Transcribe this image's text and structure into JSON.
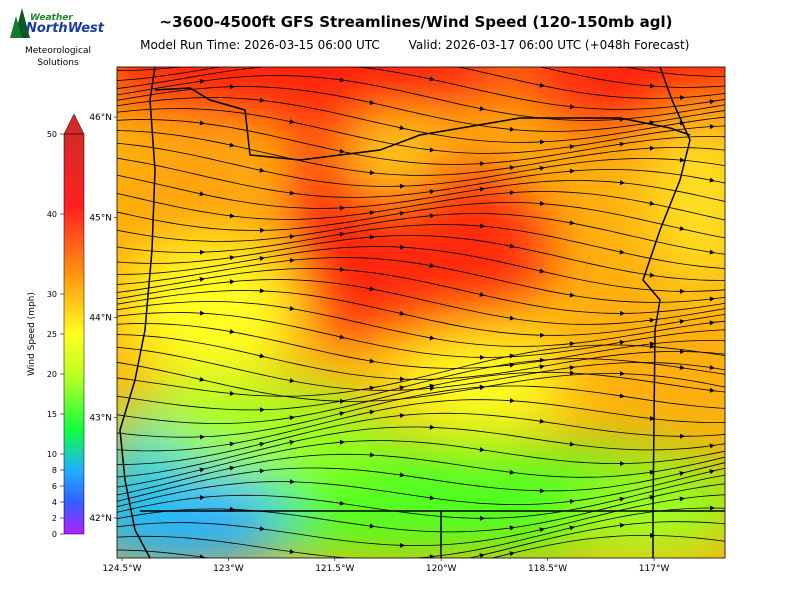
{
  "header": {
    "logo_line1": "Weather",
    "logo_line2": "NorthWest",
    "logo_sub1": "Meteorological",
    "logo_sub2": "Solutions",
    "title": "~3600-4500ft GFS Streamlines/Wind Speed (120-150mb agl)",
    "run_time": "Model Run Time: 2026-03-15 06:00 UTC",
    "valid": "Valid: 2026-03-17 06:00 UTC  (+048h Forecast)"
  },
  "colorbar": {
    "label": "Wind Speed (mph)",
    "lim": [
      0,
      50
    ],
    "ticks": [
      0,
      2,
      4,
      6,
      8,
      10,
      15,
      20,
      25,
      30,
      40,
      50
    ]
  },
  "map": {
    "xlim": [
      -124.57,
      -116.0
    ],
    "ylim": [
      41.6,
      46.5
    ],
    "xticks": [
      {
        "value": -124.5,
        "label": "124.5°W"
      },
      {
        "value": -123,
        "label": "123°W"
      },
      {
        "value": -121.5,
        "label": "121.5°W"
      },
      {
        "value": -120,
        "label": "120°W"
      },
      {
        "value": -118.5,
        "label": "118.5°W"
      },
      {
        "value": -117,
        "label": "117°W"
      }
    ],
    "yticks": [
      {
        "value": 42,
        "label": "42°N"
      },
      {
        "value": 43,
        "label": "43°N"
      },
      {
        "value": 44,
        "label": "44°N"
      },
      {
        "value": 45,
        "label": "45°N"
      },
      {
        "value": 46,
        "label": "46°N"
      }
    ]
  }
}
